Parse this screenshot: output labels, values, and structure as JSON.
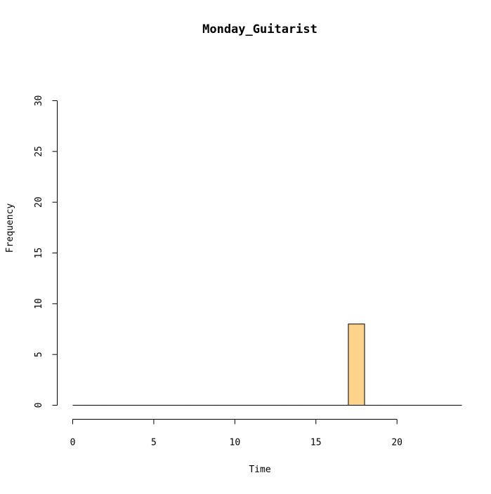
{
  "chart_data": {
    "type": "bar",
    "title": "Monday_Guitarist",
    "xlabel": "Time",
    "ylabel": "Frequency",
    "xlim": [
      0,
      24
    ],
    "ylim": [
      0,
      30
    ],
    "x_ticks": [
      0,
      5,
      10,
      15,
      20
    ],
    "y_ticks": [
      0,
      5,
      10,
      15,
      20,
      25,
      30
    ],
    "bins": [
      {
        "start": 0,
        "end": 1,
        "count": 0
      },
      {
        "start": 1,
        "end": 2,
        "count": 0
      },
      {
        "start": 2,
        "end": 3,
        "count": 0
      },
      {
        "start": 3,
        "end": 4,
        "count": 0
      },
      {
        "start": 4,
        "end": 5,
        "count": 0
      },
      {
        "start": 5,
        "end": 6,
        "count": 0
      },
      {
        "start": 6,
        "end": 7,
        "count": 0
      },
      {
        "start": 7,
        "end": 8,
        "count": 0
      },
      {
        "start": 8,
        "end": 9,
        "count": 0
      },
      {
        "start": 9,
        "end": 10,
        "count": 0
      },
      {
        "start": 10,
        "end": 11,
        "count": 0
      },
      {
        "start": 11,
        "end": 12,
        "count": 0
      },
      {
        "start": 12,
        "end": 13,
        "count": 0
      },
      {
        "start": 13,
        "end": 14,
        "count": 0
      },
      {
        "start": 14,
        "end": 15,
        "count": 0
      },
      {
        "start": 15,
        "end": 16,
        "count": 0
      },
      {
        "start": 16,
        "end": 17,
        "count": 0
      },
      {
        "start": 17,
        "end": 18,
        "count": 8
      },
      {
        "start": 18,
        "end": 19,
        "count": 0
      },
      {
        "start": 19,
        "end": 20,
        "count": 0
      },
      {
        "start": 20,
        "end": 21,
        "count": 0
      },
      {
        "start": 21,
        "end": 22,
        "count": 0
      },
      {
        "start": 22,
        "end": 23,
        "count": 0
      },
      {
        "start": 23,
        "end": 24,
        "count": 0
      }
    ],
    "bar_color": "#FDD28A",
    "bar_border_color": "#000000",
    "grid": false,
    "legend": "none"
  }
}
